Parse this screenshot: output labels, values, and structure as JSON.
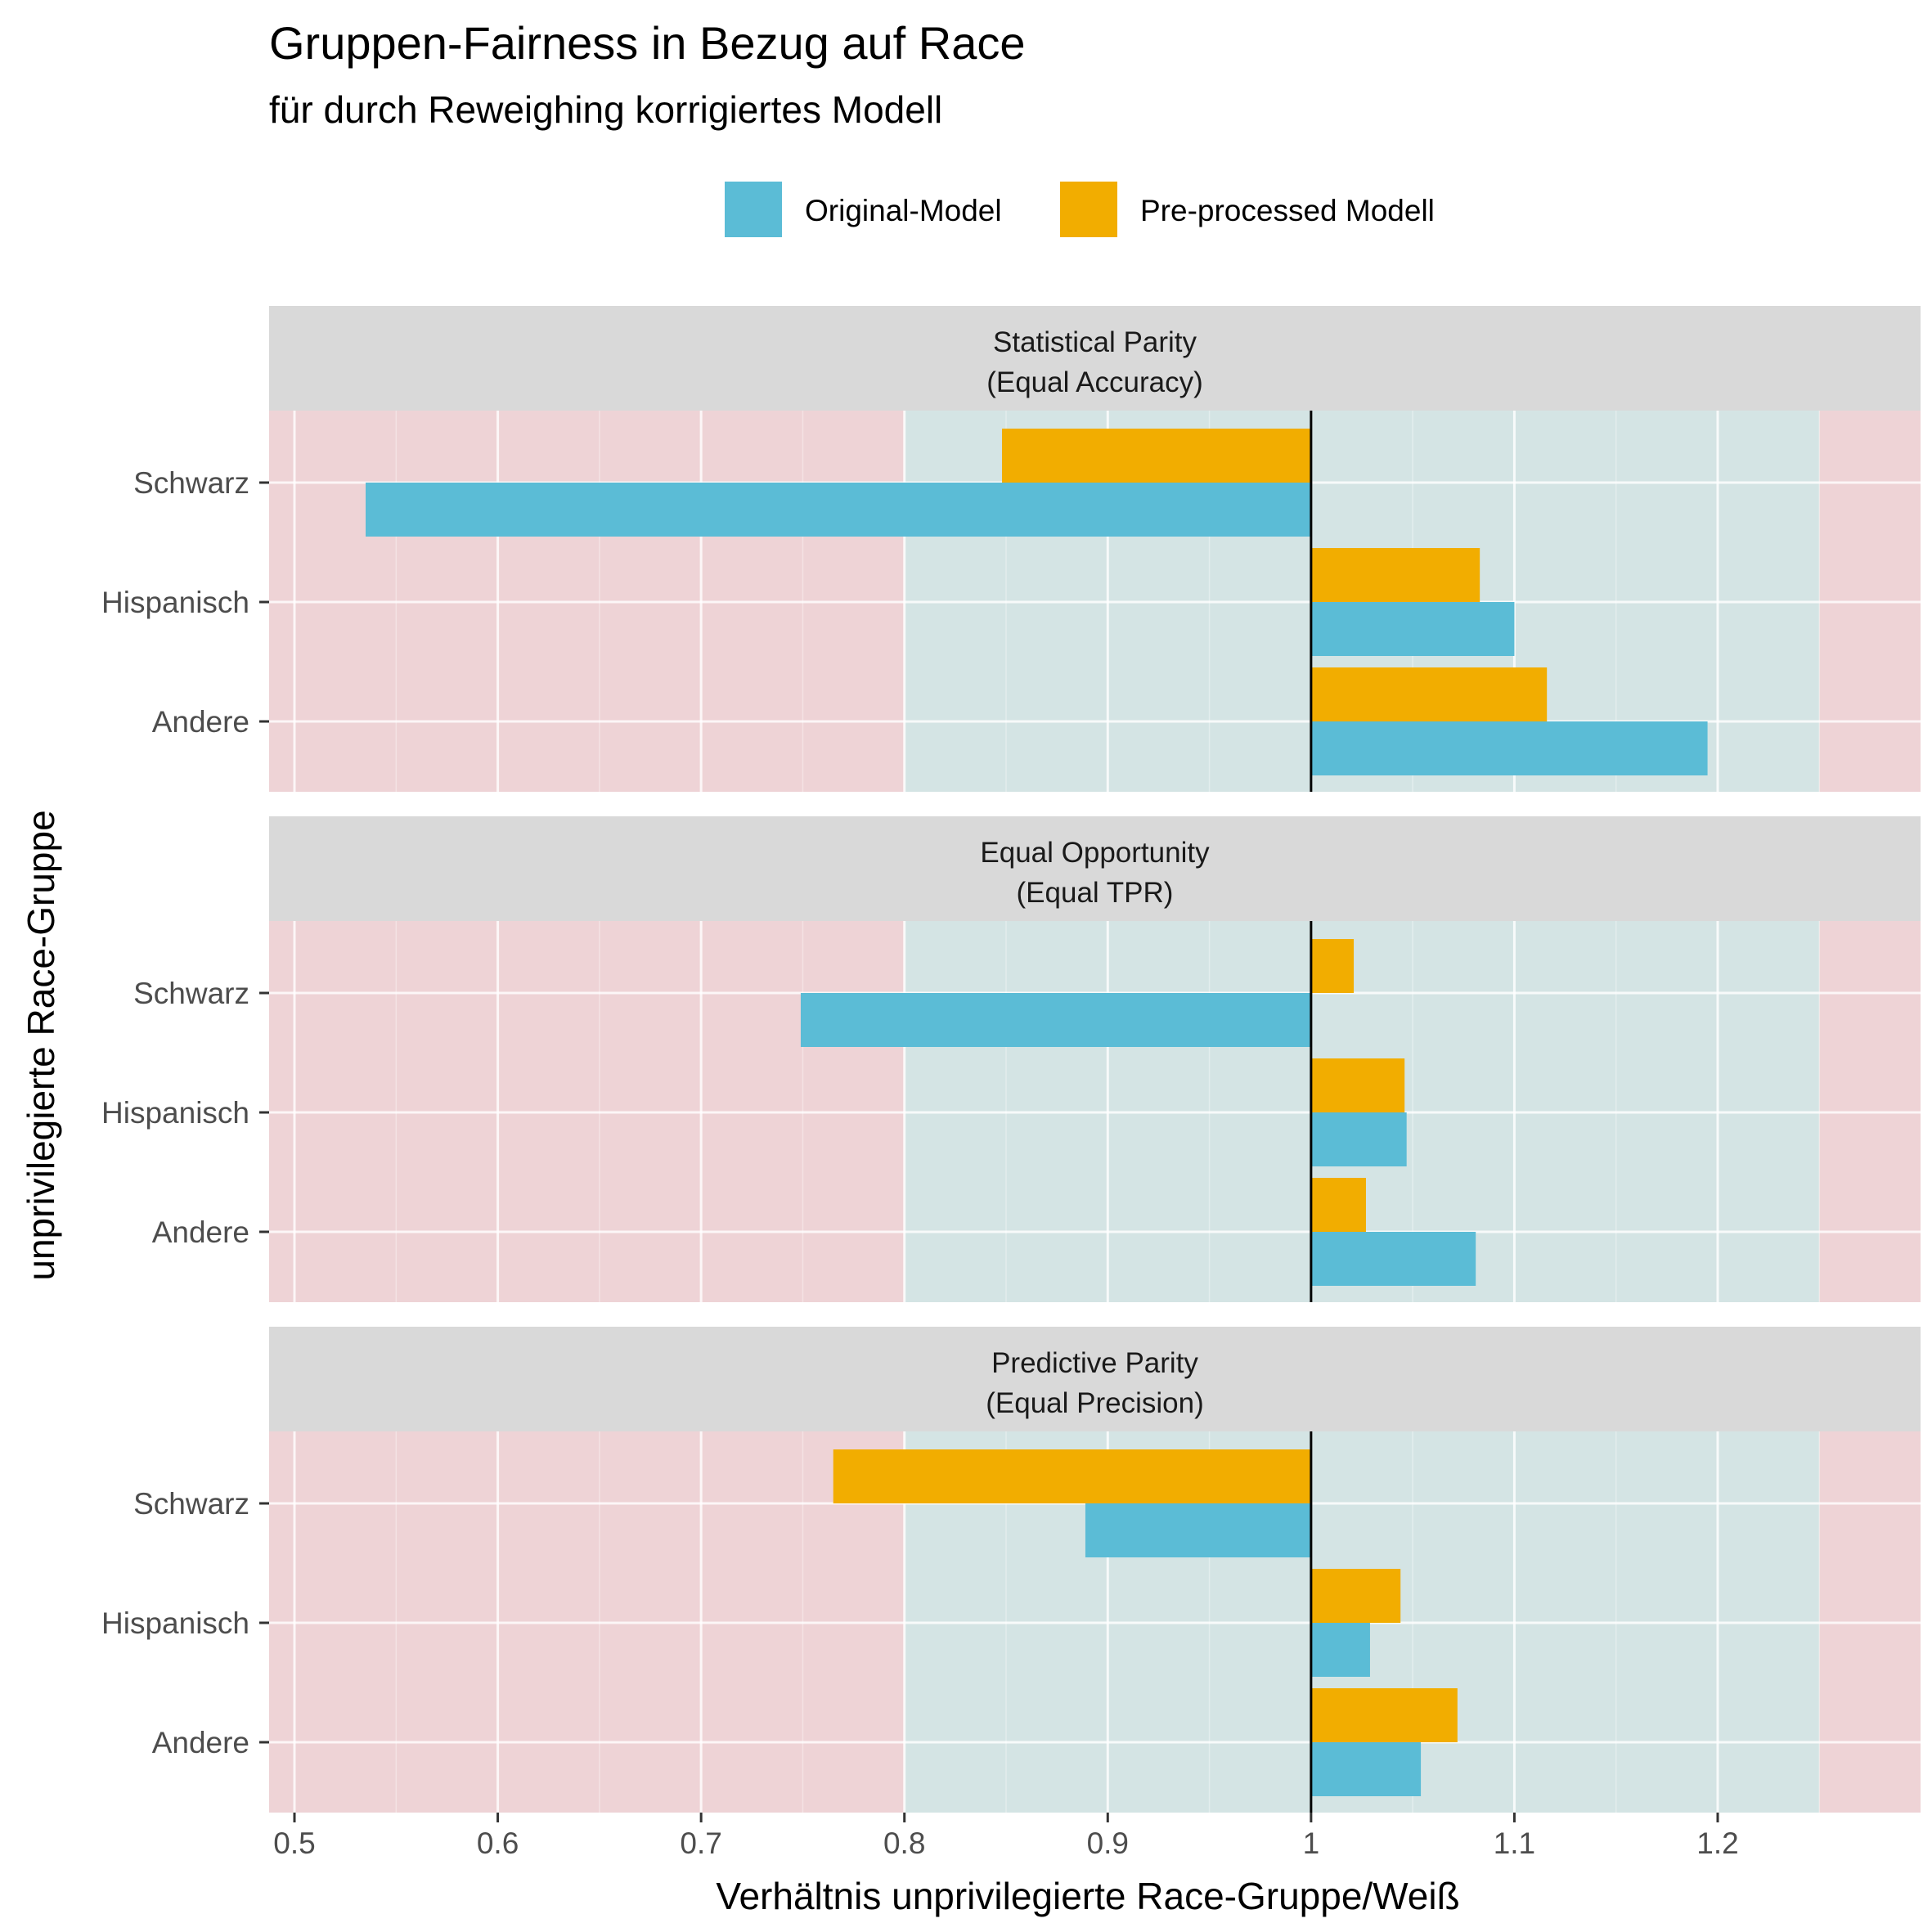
{
  "chart_data": {
    "type": "bar",
    "orientation": "horizontal",
    "title": "Gruppen-Fairness in Bezug auf Race",
    "subtitle": "für durch Reweighing korrigiertes Modell",
    "xlabel": "Verhältnis unprivilegierte Race-Gruppe/Weiß",
    "ylabel": "unprivilegierte Race-Gruppe",
    "xlim": [
      0.49,
      1.3
    ],
    "x_ticks": [
      "0.5",
      "0.6",
      "0.7",
      "0.8",
      "0.9",
      "1",
      "1.1",
      "1.2"
    ],
    "baseline": 1,
    "fair_range": [
      0.8,
      1.25
    ],
    "categories": [
      "Schwarz",
      "Hispanisch",
      "Andere"
    ],
    "legend": {
      "position": "top",
      "entries": [
        "Original-Model",
        "Pre-processed Modell"
      ]
    },
    "colors": {
      "Original-Model": "#5bbcd6",
      "Pre-processed Modell": "#f2ad00",
      "unfair_zone": "#eed3d6",
      "fair_zone": "#d4e4e4",
      "strip": "#d9d9d9"
    },
    "panels": [
      {
        "strip": [
          "Statistical Parity",
          "(Equal Accuracy)"
        ],
        "series": [
          {
            "name": "Original-Model",
            "values": [
              0.535,
              1.1,
              1.195
            ]
          },
          {
            "name": "Pre-processed Modell",
            "values": [
              0.848,
              1.083,
              1.116
            ]
          }
        ]
      },
      {
        "strip": [
          "Equal Opportunity",
          "(Equal TPR)"
        ],
        "series": [
          {
            "name": "Original-Model",
            "values": [
              0.749,
              1.047,
              1.081
            ]
          },
          {
            "name": "Pre-processed Modell",
            "values": [
              1.021,
              1.046,
              1.027
            ]
          }
        ]
      },
      {
        "strip": [
          "Predictive Parity",
          "(Equal Precision)"
        ],
        "series": [
          {
            "name": "Original-Model",
            "values": [
              0.889,
              1.029,
              1.054
            ]
          },
          {
            "name": "Pre-processed Modell",
            "values": [
              0.765,
              1.044,
              1.072
            ]
          }
        ]
      }
    ]
  }
}
